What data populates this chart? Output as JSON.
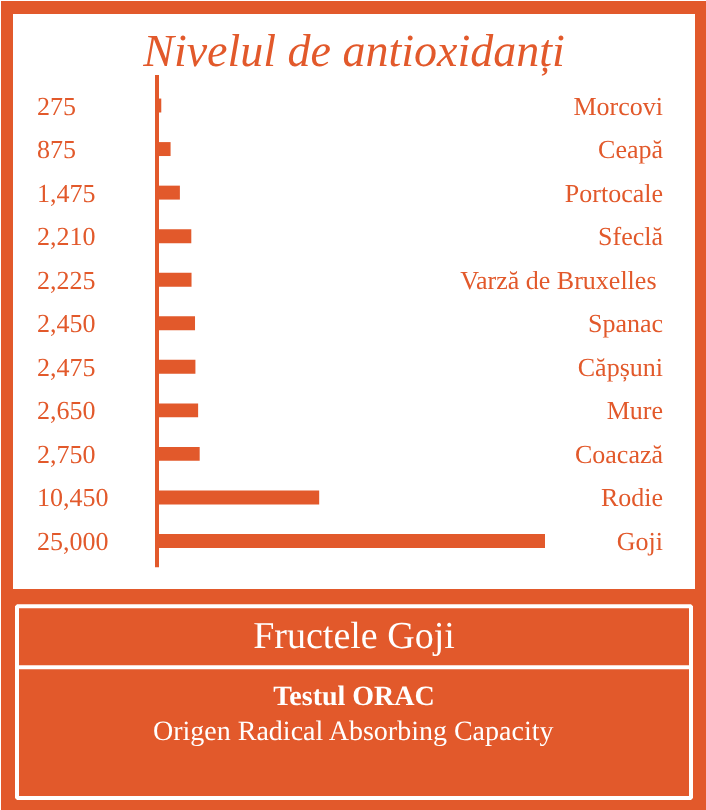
{
  "chart_data": {
    "type": "bar",
    "orientation": "horizontal",
    "title": "Nivelul de antioxidanți",
    "subtitle": "Fructele Goji",
    "categories": [
      "Morcovi",
      "Ceapă",
      "Portocale",
      "Sfeclă",
      "Varză  de Bruxelles",
      "Spanac",
      "Căpșuni",
      "Mure",
      "Coacază",
      "Rodie",
      "Goji"
    ],
    "values": [
      275,
      875,
      1475,
      2210,
      2225,
      2450,
      2475,
      2650,
      2750,
      10450,
      25000
    ],
    "value_labels": [
      "275",
      "875",
      "1,475",
      "2,210",
      "2,225",
      "2,450",
      "2,475",
      "2,650",
      "2,750",
      "10,450",
      "25,000"
    ],
    "color": "#e2592b",
    "annotations": [
      "Testul ORAC",
      "Origen Radical Absorbing Capacity"
    ]
  }
}
